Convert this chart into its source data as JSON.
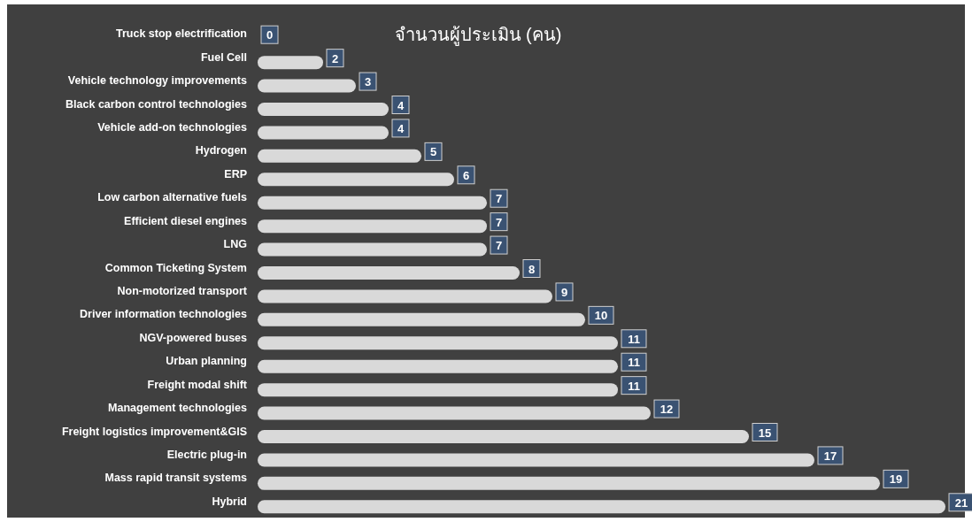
{
  "chart_data": {
    "type": "bar",
    "orientation": "horizontal",
    "title": "จำนวนผู้ประเมิน (คน)",
    "categories": [
      "Truck stop electrification",
      "Fuel Cell",
      "Vehicle technology improvements",
      "Black carbon control technologies",
      "Vehicle add-on technologies ",
      "Hydrogen",
      "ERP",
      "Low carbon alternative fuels",
      "Efficient diesel engines",
      "LNG",
      "Common Ticketing System",
      "Non-motorized transport",
      "Driver information technologies",
      "NGV-powered buses",
      "Urban planning",
      "Freight modal shift",
      "Management technologies",
      "Freight logistics improvement&GIS",
      "Electric plug-in",
      "Mass rapid transit systems",
      "Hybrid"
    ],
    "values": [
      0,
      2,
      3,
      4,
      4,
      5,
      6,
      7,
      7,
      7,
      8,
      9,
      10,
      11,
      11,
      11,
      12,
      15,
      17,
      19,
      21
    ],
    "color": "#d9d9d9",
    "data_labels": true
  }
}
